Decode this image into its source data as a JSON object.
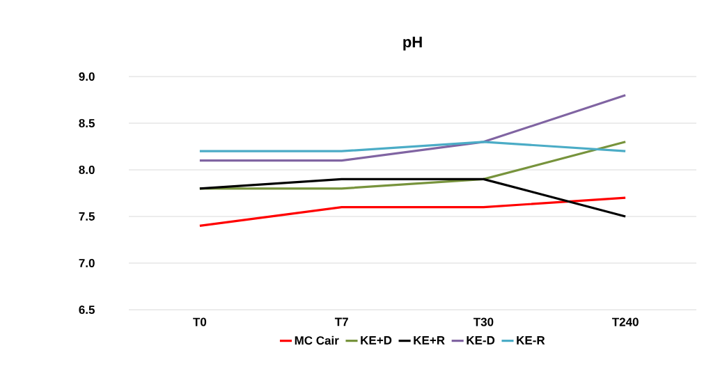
{
  "chart_data": {
    "type": "line",
    "title": "pH",
    "categories": [
      "T0",
      "T7",
      "T30",
      "T240"
    ],
    "series": [
      {
        "name": "MC Cair",
        "color": "#ff0000",
        "values": [
          7.4,
          7.6,
          7.6,
          7.7
        ]
      },
      {
        "name": "KE+D",
        "color": "#77933c",
        "values": [
          7.8,
          7.8,
          7.9,
          8.3
        ]
      },
      {
        "name": "KE+R",
        "color": "#000000",
        "values": [
          7.8,
          7.9,
          7.9,
          7.5
        ]
      },
      {
        "name": "KE-D",
        "color": "#8064a2",
        "values": [
          8.1,
          8.1,
          8.3,
          8.8
        ]
      },
      {
        "name": "KE-R",
        "color": "#4bacc6",
        "values": [
          8.2,
          8.2,
          8.3,
          8.2
        ]
      }
    ],
    "ylim": [
      6.5,
      9.0
    ],
    "yticks": [
      {
        "value": 6.5,
        "label": "6.5"
      },
      {
        "value": 7,
        "label": "7.0"
      },
      {
        "value": 7.5,
        "label": "7.5"
      },
      {
        "value": 8,
        "label": "8.0"
      },
      {
        "value": 8.5,
        "label": "8.5"
      },
      {
        "value": 9,
        "label": "9.0"
      }
    ],
    "grid": "y",
    "legend": "bottom",
    "marker": "none",
    "line_style": "solid"
  }
}
